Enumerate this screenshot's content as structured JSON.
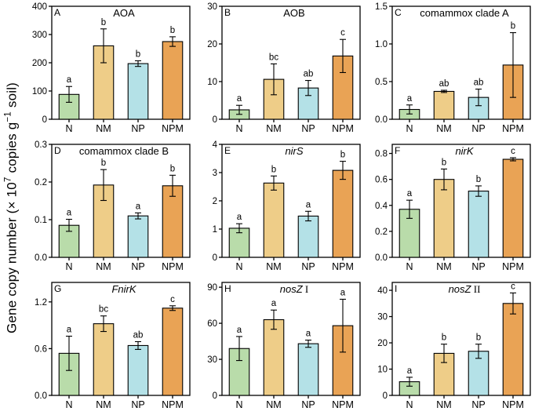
{
  "figure": {
    "ylabel_plain": "Gene copy number (× 10^7 copies g^-1 soil)",
    "ylabel_segments": [
      {
        "t": "Gene copy number (× 10"
      },
      {
        "t": "7",
        "sup": true
      },
      {
        "t": " copies g"
      },
      {
        "t": "−1",
        "sup": true
      },
      {
        "t": " soil)"
      }
    ],
    "categories": [
      "N",
      "NM",
      "NP",
      "NPM"
    ],
    "bar_colors": [
      "#b9dcaa",
      "#eecd88",
      "#b4e1e7",
      "#e9a355"
    ],
    "bar_stroke_color": "#000000",
    "axis_color": "#000000"
  },
  "chart_data": [
    {
      "type": "bar",
      "panel": "A",
      "title": "AOA",
      "title_segments": [
        {
          "t": "AOA",
          "i": false
        }
      ],
      "categories": [
        "N",
        "NM",
        "NP",
        "NPM"
      ],
      "ylim": [
        0,
        400
      ],
      "tick_values": [
        0,
        100,
        200,
        300,
        400
      ],
      "tick_labels": [
        "0",
        "100",
        "200",
        "300",
        "400"
      ],
      "values": [
        88,
        260,
        197,
        275
      ],
      "errors": [
        28,
        60,
        10,
        17
      ],
      "sig_letters": [
        "a",
        "b",
        "b",
        "b"
      ]
    },
    {
      "type": "bar",
      "panel": "B",
      "title": "AOB",
      "title_segments": [
        {
          "t": "AOB",
          "i": false
        }
      ],
      "categories": [
        "N",
        "NM",
        "NP",
        "NPM"
      ],
      "ylim": [
        0,
        30
      ],
      "tick_values": [
        0,
        10,
        20,
        30
      ],
      "tick_labels": [
        "0",
        "10",
        "20",
        "30"
      ],
      "values": [
        2.5,
        10.6,
        8.3,
        16.8
      ],
      "errors": [
        1.2,
        4.1,
        2.0,
        4.4
      ],
      "sig_letters": [
        "a",
        "bc",
        "ab",
        "c"
      ]
    },
    {
      "type": "bar",
      "panel": "C",
      "title": "comammox clade A",
      "title_segments": [
        {
          "t": "comammox clade A",
          "i": false
        }
      ],
      "categories": [
        "N",
        "NM",
        "NP",
        "NPM"
      ],
      "ylim": [
        0,
        1.5
      ],
      "tick_values": [
        0,
        0.5,
        1.0,
        1.5
      ],
      "tick_labels": [
        "0.0",
        "0.5",
        "1.0",
        "1.5"
      ],
      "values": [
        0.13,
        0.37,
        0.29,
        0.72
      ],
      "errors": [
        0.06,
        0.015,
        0.11,
        0.43
      ],
      "sig_letters": [
        "a",
        "ab",
        "ab",
        "b"
      ]
    },
    {
      "type": "bar",
      "panel": "D",
      "title": "comammox clade B",
      "title_segments": [
        {
          "t": "comammox clade B",
          "i": false
        }
      ],
      "categories": [
        "N",
        "NM",
        "NP",
        "NPM"
      ],
      "ylim": [
        0,
        0.3
      ],
      "tick_values": [
        0,
        0.1,
        0.2,
        0.3
      ],
      "tick_labels": [
        "0.0",
        "0.1",
        "0.2",
        "0.3"
      ],
      "values": [
        0.085,
        0.192,
        0.11,
        0.19
      ],
      "errors": [
        0.016,
        0.041,
        0.008,
        0.028
      ],
      "sig_letters": [
        "a",
        "b",
        "a",
        "b"
      ]
    },
    {
      "type": "bar",
      "panel": "E",
      "title": "nirS",
      "title_segments": [
        {
          "t": "nirS",
          "i": true
        }
      ],
      "categories": [
        "N",
        "NM",
        "NP",
        "NPM"
      ],
      "ylim": [
        0,
        4
      ],
      "tick_values": [
        0,
        1,
        2,
        3,
        4
      ],
      "tick_labels": [
        "0",
        "1",
        "2",
        "3",
        "4"
      ],
      "values": [
        1.03,
        2.63,
        1.46,
        3.08
      ],
      "errors": [
        0.16,
        0.25,
        0.17,
        0.32
      ],
      "sig_letters": [
        "a",
        "b",
        "a",
        "b"
      ]
    },
    {
      "type": "bar",
      "panel": "F",
      "title": "nirK",
      "title_segments": [
        {
          "t": "nirK",
          "i": true
        }
      ],
      "categories": [
        "N",
        "NM",
        "NP",
        "NPM"
      ],
      "ylim": [
        0,
        0.87
      ],
      "tick_values": [
        0,
        0.2,
        0.4,
        0.6,
        0.8
      ],
      "tick_labels": [
        "0.0",
        "0.2",
        "0.4",
        "0.6",
        "0.8"
      ],
      "values": [
        0.37,
        0.6,
        0.51,
        0.755
      ],
      "errors": [
        0.07,
        0.08,
        0.04,
        0.012
      ],
      "sig_letters": [
        "a",
        "b",
        "b",
        "c"
      ]
    },
    {
      "type": "bar",
      "panel": "G",
      "title": "FnirK",
      "title_segments": [
        {
          "t": "FnirK",
          "i": true
        }
      ],
      "categories": [
        "N",
        "NM",
        "NP",
        "NPM"
      ],
      "ylim": [
        0,
        1.45
      ],
      "tick_values": [
        0,
        0.6,
        1.2
      ],
      "tick_labels": [
        "0.0",
        "0.6",
        "1.2"
      ],
      "values": [
        0.54,
        0.92,
        0.64,
        1.12
      ],
      "errors": [
        0.22,
        0.1,
        0.05,
        0.03
      ],
      "sig_letters": [
        "a",
        "bc",
        "ab",
        "c"
      ]
    },
    {
      "type": "bar",
      "panel": "H",
      "title": "nosZ I",
      "title_segments": [
        {
          "t": "nosZ",
          "i": true
        },
        {
          "t": " I",
          "serif": true
        }
      ],
      "categories": [
        "N",
        "NM",
        "NP",
        "NPM"
      ],
      "ylim": [
        0,
        94
      ],
      "tick_values": [
        0,
        30,
        60,
        90
      ],
      "tick_labels": [
        "0",
        "30",
        "60",
        "90"
      ],
      "values": [
        39,
        63,
        43,
        58
      ],
      "errors": [
        10,
        8,
        3,
        22
      ],
      "sig_letters": [
        "a",
        "a",
        "a",
        "a"
      ]
    },
    {
      "type": "bar",
      "panel": "I",
      "title": "nosZ II",
      "title_segments": [
        {
          "t": "nosZ",
          "i": true
        },
        {
          "t": " II",
          "serif": true
        }
      ],
      "categories": [
        "N",
        "NM",
        "NP",
        "NPM"
      ],
      "ylim": [
        0,
        43
      ],
      "tick_values": [
        0,
        10,
        20,
        30,
        40
      ],
      "tick_labels": [
        "0",
        "10",
        "20",
        "30",
        "40"
      ],
      "values": [
        5.2,
        16.0,
        16.8,
        35.0
      ],
      "errors": [
        1.7,
        3.5,
        2.7,
        4.0
      ],
      "sig_letters": [
        "a",
        "b",
        "b",
        "c"
      ]
    }
  ]
}
